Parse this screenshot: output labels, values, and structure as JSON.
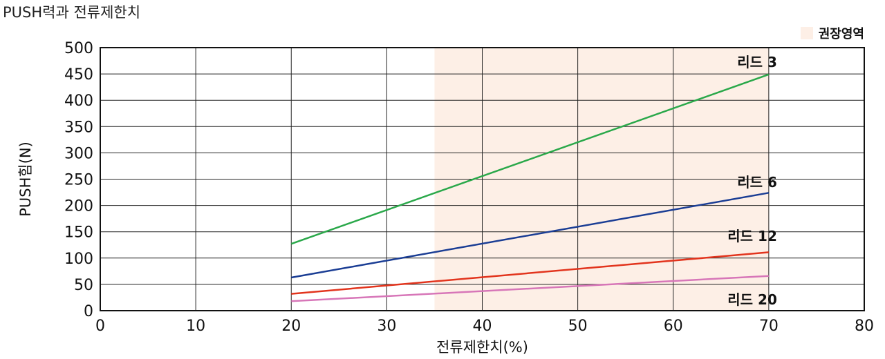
{
  "title": "PUSH력과 전류제한치",
  "legend": {
    "label": "권장영역",
    "color": "#fdefe6"
  },
  "chart_data": {
    "type": "line",
    "title": "PUSH력과 전류제한치",
    "xlabel": "전류제한치(%)",
    "ylabel": "PUSH힘(N)",
    "xlim": [
      0,
      80
    ],
    "ylim": [
      0,
      500
    ],
    "xticks": [
      0,
      10,
      20,
      30,
      40,
      50,
      60,
      70,
      80
    ],
    "yticks": [
      0,
      50,
      100,
      150,
      200,
      250,
      300,
      350,
      400,
      450,
      500
    ],
    "grid": true,
    "recommended_region": {
      "label": "권장영역",
      "x": [
        35,
        70
      ],
      "color": "#fdefe6"
    },
    "series": [
      {
        "name": "리드 3",
        "color": "#2aa84a",
        "x": [
          20,
          70
        ],
        "y": [
          127,
          449
        ]
      },
      {
        "name": "리드 6",
        "color": "#1a3d94",
        "x": [
          20,
          70
        ],
        "y": [
          63,
          224
        ]
      },
      {
        "name": "리드 12",
        "color": "#e2341d",
        "x": [
          20,
          70
        ],
        "y": [
          32,
          111
        ]
      },
      {
        "name": "리드 20",
        "color": "#d776b8",
        "x": [
          20,
          70
        ],
        "y": [
          18,
          66
        ]
      }
    ]
  }
}
